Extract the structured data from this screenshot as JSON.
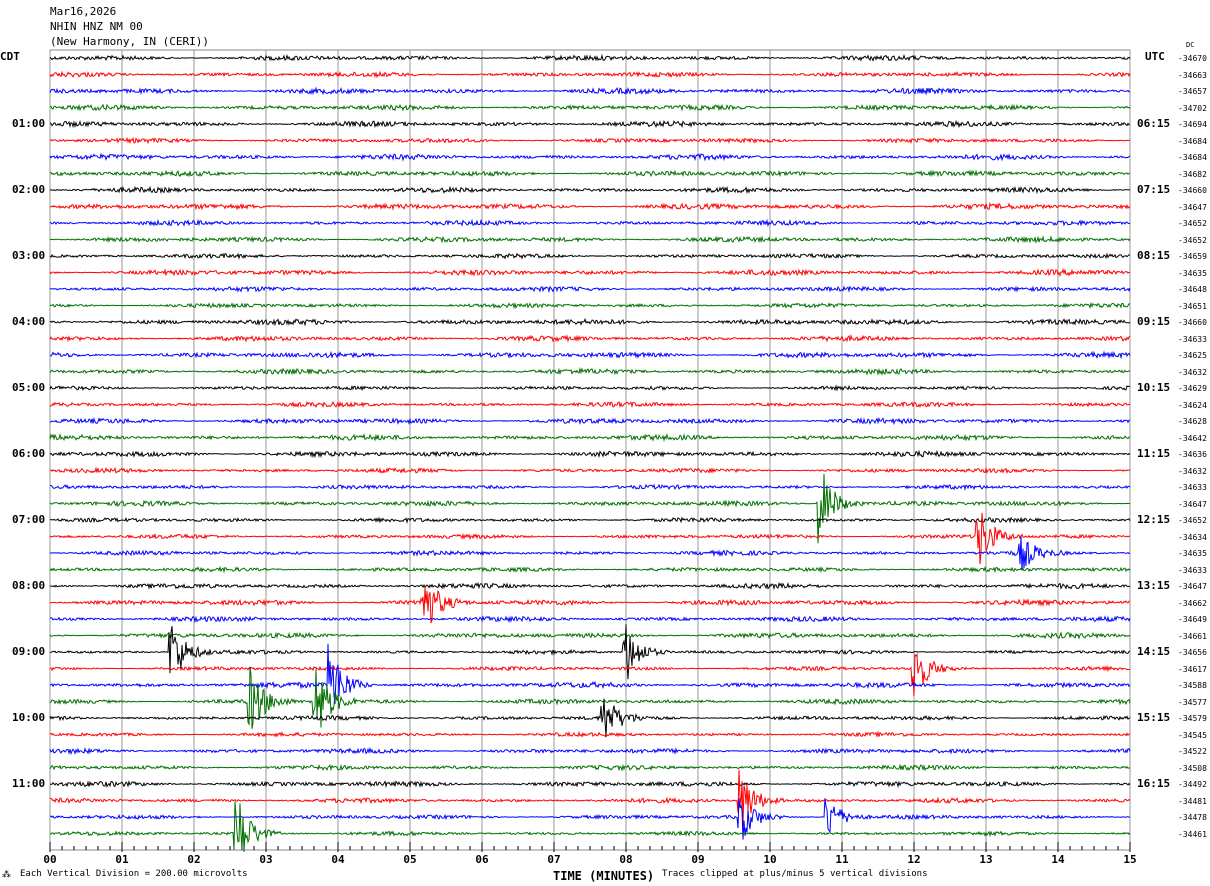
{
  "header": {
    "date": "Mar16,2026",
    "station": "NHIN HNZ NM 00",
    "location": "(New Harmony, IN (CERI))"
  },
  "left_tz": "CDT",
  "right_tz": "UTC",
  "dc_label": "DC",
  "footer": {
    "scale": "Each Vertical Division =  200.00 microvolts",
    "xlabel": "TIME (MINUTES)",
    "clip_note": "Traces clipped at plus/minus 5 vertical divisions"
  },
  "chart_data": {
    "type": "line",
    "xlabel": "TIME (MINUTES)",
    "xlim": [
      0,
      15
    ],
    "x_ticks": [
      "00",
      "01",
      "02",
      "03",
      "04",
      "05",
      "06",
      "07",
      "08",
      "09",
      "10",
      "11",
      "12",
      "13",
      "14",
      "15"
    ],
    "grid": "vertical lines every minute",
    "trace_colors": [
      "#000000",
      "#ff0000",
      "#0000ff",
      "#007000"
    ],
    "left_labels": [
      "",
      "01:00",
      "02:00",
      "03:00",
      "04:00",
      "05:00",
      "06:00",
      "07:00",
      "08:00",
      "09:00",
      "10:00",
      "11:00"
    ],
    "right_labels": [
      "",
      "06:15",
      "07:15",
      "08:15",
      "09:15",
      "10:15",
      "11:15",
      "12:15",
      "13:15",
      "14:15",
      "15:15",
      "16:15"
    ],
    "dc_offsets": [
      "-34670",
      "-34663",
      "-34657",
      "-34702",
      "-34694",
      "-34684",
      "-34684",
      "-34682",
      "-34660",
      "-34647",
      "-34652",
      "-34652",
      "-34659",
      "-34635",
      "-34648",
      "-34651",
      "-34660",
      "-34633",
      "-34625",
      "-34632",
      "-34629",
      "-34624",
      "-34628",
      "-34642",
      "-34636",
      "-34632",
      "-34633",
      "-34647",
      "-34652",
      "-34634",
      "-34635",
      "-34633",
      "-34647",
      "-34662",
      "-34649",
      "-34661",
      "-34656",
      "-34617",
      "-34588",
      "-34577",
      "-34579",
      "-34545",
      "-34522",
      "-34508",
      "-34492",
      "-34481",
      "-34478",
      "-34461"
    ],
    "events": [
      {
        "row": 27,
        "minute": 10.7,
        "amp": 5
      },
      {
        "row": 29,
        "minute": 12.9,
        "amp": 4
      },
      {
        "row": 30,
        "minute": 13.5,
        "amp": 2
      },
      {
        "row": 33,
        "minute": 5.2,
        "amp": 4
      },
      {
        "row": 36,
        "minute": 1.7,
        "amp": 4
      },
      {
        "row": 36,
        "minute": 8.0,
        "amp": 4
      },
      {
        "row": 37,
        "minute": 12.0,
        "amp": 4
      },
      {
        "row": 38,
        "minute": 3.9,
        "amp": 5
      },
      {
        "row": 39,
        "minute": 3.7,
        "amp": 5
      },
      {
        "row": 39,
        "minute": 2.8,
        "amp": 4
      },
      {
        "row": 40,
        "minute": 7.7,
        "amp": 3
      },
      {
        "row": 45,
        "minute": 9.6,
        "amp": 4
      },
      {
        "row": 46,
        "minute": 9.6,
        "amp": 3
      },
      {
        "row": 46,
        "minute": 10.8,
        "amp": 3
      },
      {
        "row": 47,
        "minute": 2.6,
        "amp": 5
      }
    ]
  }
}
